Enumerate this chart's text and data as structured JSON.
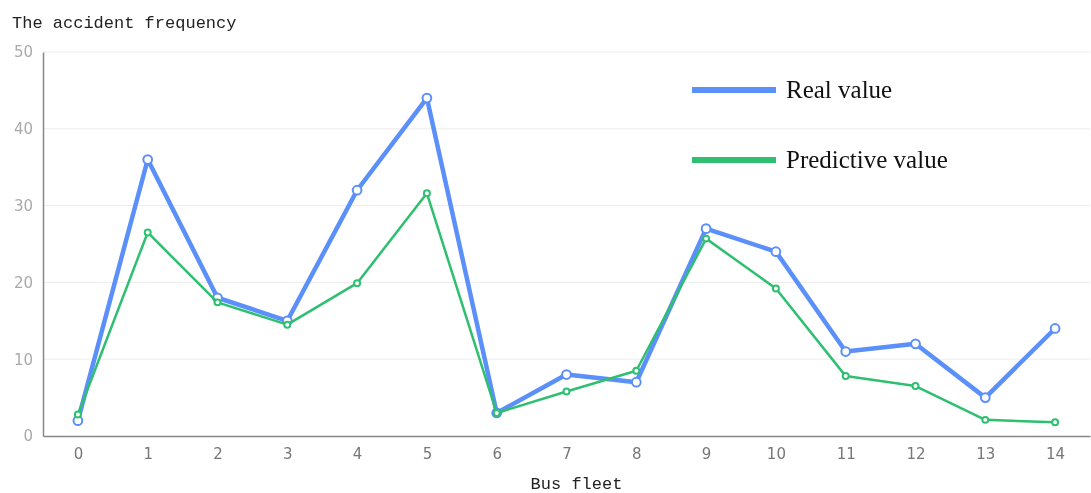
{
  "chart_data": {
    "type": "line",
    "ylabel": "The accident frequency",
    "xlabel": "Bus fleet",
    "x": [
      0,
      1,
      2,
      3,
      4,
      5,
      6,
      7,
      8,
      9,
      10,
      11,
      12,
      13,
      14
    ],
    "xlim": [
      -0.5,
      14.5
    ],
    "xticks": [
      0,
      1,
      2,
      3,
      4,
      5,
      6,
      7,
      8,
      9,
      10,
      11,
      12,
      13,
      14
    ],
    "series": [
      {
        "name": "Real value",
        "color": "#5b8ff9",
        "values": [
          2,
          36,
          18,
          15,
          32,
          44,
          3,
          8,
          7,
          27,
          24,
          11,
          12,
          5,
          14
        ]
      },
      {
        "name": "Predictive value",
        "color": "#2fbf71",
        "values": [
          2.8,
          26.5,
          17.4,
          14.5,
          19.9,
          31.6,
          3,
          5.8,
          8.5,
          25.7,
          19.2,
          7.8,
          6.5,
          2.1,
          1.8
        ]
      }
    ],
    "ylim": [
      0,
      50
    ],
    "yticks": [
      0,
      10,
      20,
      30,
      40,
      50
    ],
    "grid": "y",
    "legend": "top right",
    "marker": "circle",
    "line_style": "solid"
  }
}
